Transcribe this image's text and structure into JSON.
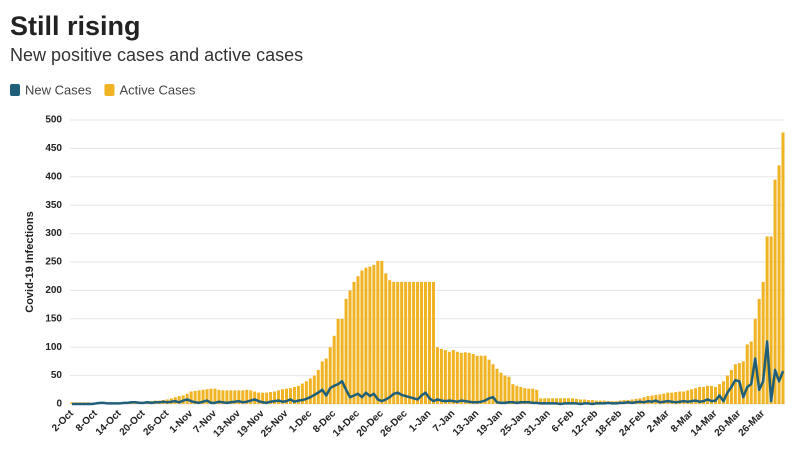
{
  "chart_data": {
    "type": "bar",
    "title": "Still rising",
    "subtitle": "New positive cases and active cases",
    "ylabel": "Covid-19 Infections",
    "ylim": [
      0,
      500
    ],
    "yticks": [
      0,
      50,
      100,
      150,
      200,
      250,
      300,
      350,
      400,
      450,
      500
    ],
    "grid": true,
    "legend": "top-left",
    "categories": [
      "2-Oct",
      null,
      null,
      null,
      null,
      null,
      "8-Oct",
      null,
      null,
      null,
      null,
      null,
      "14-Oct",
      null,
      null,
      null,
      null,
      null,
      "20-Oct",
      null,
      null,
      null,
      null,
      null,
      "26-Oct",
      null,
      null,
      null,
      null,
      null,
      "1-Nov",
      null,
      null,
      null,
      null,
      null,
      "7-Nov",
      null,
      null,
      null,
      null,
      null,
      "13-Nov",
      null,
      null,
      null,
      null,
      null,
      "19-Nov",
      null,
      null,
      null,
      null,
      null,
      "25-Nov",
      null,
      null,
      null,
      null,
      null,
      "1-Dec",
      null,
      null,
      null,
      null,
      null,
      "8-Dec",
      null,
      null,
      null,
      null,
      null,
      "14-Dec",
      null,
      null,
      null,
      null,
      null,
      "20-Dec",
      null,
      null,
      null,
      null,
      null,
      "26-Dec",
      null,
      null,
      null,
      null,
      null,
      "1-Jan",
      null,
      null,
      null,
      null,
      null,
      "7-Jan",
      null,
      null,
      null,
      null,
      null,
      "13-Jan",
      null,
      null,
      null,
      null,
      null,
      "19-Jan",
      null,
      null,
      null,
      null,
      null,
      "25-Jan",
      null,
      null,
      null,
      null,
      null,
      "31-Jan",
      null,
      null,
      null,
      null,
      null,
      "6-Feb",
      null,
      null,
      null,
      null,
      null,
      "12-Feb",
      null,
      null,
      null,
      null,
      null,
      "18-Feb",
      null,
      null,
      null,
      null,
      null,
      "24-Feb",
      null,
      null,
      null,
      null,
      null,
      "2-Mar",
      null,
      null,
      null,
      null,
      null,
      "8-Mar",
      null,
      null,
      null,
      null,
      null,
      "14-Mar",
      null,
      null,
      null,
      null,
      null,
      "20-Mar",
      null,
      null,
      null,
      null,
      null,
      "26-Mar",
      null,
      null,
      null,
      null,
      null
    ],
    "series": [
      {
        "name": "New Cases",
        "color": "#1f5f7a",
        "type": "line",
        "values": [
          0,
          0,
          0,
          0,
          0,
          0,
          1,
          2,
          2,
          1,
          1,
          1,
          1,
          2,
          2,
          3,
          3,
          2,
          2,
          3,
          2,
          3,
          3,
          4,
          3,
          4,
          5,
          3,
          6,
          8,
          5,
          3,
          2,
          4,
          6,
          2,
          2,
          4,
          3,
          2,
          3,
          4,
          5,
          3,
          4,
          6,
          8,
          5,
          3,
          2,
          4,
          5,
          6,
          4,
          5,
          8,
          4,
          6,
          7,
          9,
          12,
          16,
          20,
          25,
          15,
          28,
          32,
          35,
          40,
          25,
          12,
          15,
          18,
          12,
          20,
          14,
          18,
          8,
          5,
          8,
          12,
          18,
          20,
          16,
          14,
          12,
          10,
          8,
          15,
          20,
          10,
          5,
          8,
          6,
          5,
          6,
          5,
          4,
          6,
          5,
          4,
          3,
          3,
          4,
          6,
          10,
          12,
          3,
          2,
          2,
          3,
          3,
          2,
          3,
          3,
          3,
          2,
          2,
          1,
          1,
          1,
          1,
          1,
          0,
          1,
          1,
          1,
          1,
          0,
          1,
          1,
          0,
          1,
          1,
          1,
          2,
          1,
          1,
          2,
          2,
          3,
          2,
          3,
          4,
          3,
          5,
          4,
          6,
          3,
          4,
          5,
          4,
          3,
          4,
          5,
          4,
          5,
          6,
          4,
          5,
          8,
          5,
          6,
          15,
          5,
          20,
          30,
          42,
          40,
          12,
          30,
          35,
          80,
          25,
          40,
          110,
          5,
          60,
          40,
          58
        ]
      },
      {
        "name": "Active Cases",
        "color": "#f0b323",
        "type": "bar",
        "values": [
          3,
          3,
          3,
          3,
          3,
          2,
          2,
          2,
          2,
          2,
          2,
          2,
          2,
          2,
          3,
          3,
          4,
          4,
          4,
          5,
          5,
          6,
          6,
          7,
          8,
          10,
          12,
          14,
          15,
          18,
          22,
          23,
          24,
          25,
          26,
          27,
          27,
          25,
          24,
          24,
          24,
          24,
          24,
          24,
          25,
          24,
          22,
          20,
          20,
          20,
          21,
          22,
          24,
          26,
          27,
          28,
          30,
          32,
          36,
          40,
          45,
          50,
          60,
          75,
          80,
          100,
          120,
          150,
          150,
          185,
          200,
          215,
          225,
          235,
          240,
          242,
          245,
          252,
          252,
          230,
          218,
          215,
          215,
          215,
          215,
          215,
          215,
          215,
          215,
          215,
          215,
          215,
          100,
          97,
          95,
          92,
          95,
          92,
          90,
          91,
          90,
          88,
          85,
          85,
          85,
          78,
          70,
          62,
          55,
          50,
          48,
          35,
          32,
          30,
          28,
          27,
          27,
          25,
          10,
          10,
          10,
          10,
          10,
          10,
          10,
          10,
          10,
          9,
          8,
          8,
          7,
          7,
          6,
          6,
          6,
          5,
          5,
          5,
          6,
          7,
          7,
          8,
          9,
          10,
          12,
          14,
          15,
          16,
          17,
          18,
          20,
          20,
          21,
          22,
          22,
          24,
          26,
          28,
          30,
          30,
          32,
          32,
          30,
          35,
          40,
          50,
          60,
          70,
          72,
          75,
          105,
          110,
          150,
          185,
          215,
          295,
          295,
          395,
          420,
          478
        ]
      }
    ]
  }
}
